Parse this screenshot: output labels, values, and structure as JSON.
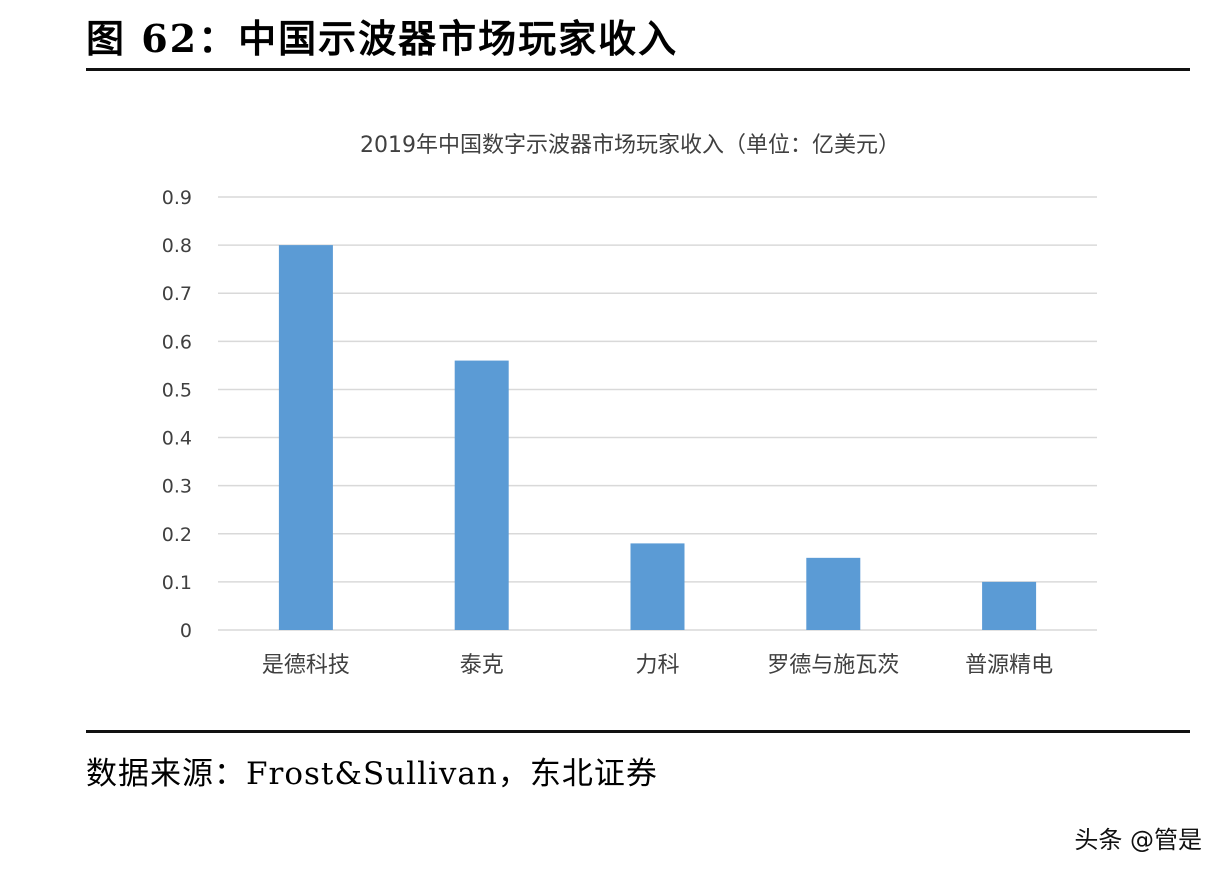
{
  "figure": {
    "title": "图 62：中国示波器市场玩家收入",
    "source": "数据来源：Frost&Sullivan，东北证券",
    "watermark": "头条 @管是"
  },
  "chart_data": {
    "type": "bar",
    "title": "2019年中国数字示波器市场玩家收入（单位：亿美元）",
    "xlabel": "",
    "ylabel": "",
    "categories": [
      "是德科技",
      "泰克",
      "力科",
      "罗德与施瓦茨",
      "普源精电"
    ],
    "values": [
      0.8,
      0.56,
      0.18,
      0.15,
      0.1
    ],
    "ylim": [
      0,
      0.9
    ],
    "yticks": [
      "0",
      "0.1",
      "0.2",
      "0.3",
      "0.4",
      "0.5",
      "0.6",
      "0.7",
      "0.8",
      "0.9"
    ],
    "grid": true,
    "legend": "none",
    "colors": {
      "bar": "#5b9bd5",
      "grid": "#d9d9d9",
      "text": "#404040"
    }
  }
}
